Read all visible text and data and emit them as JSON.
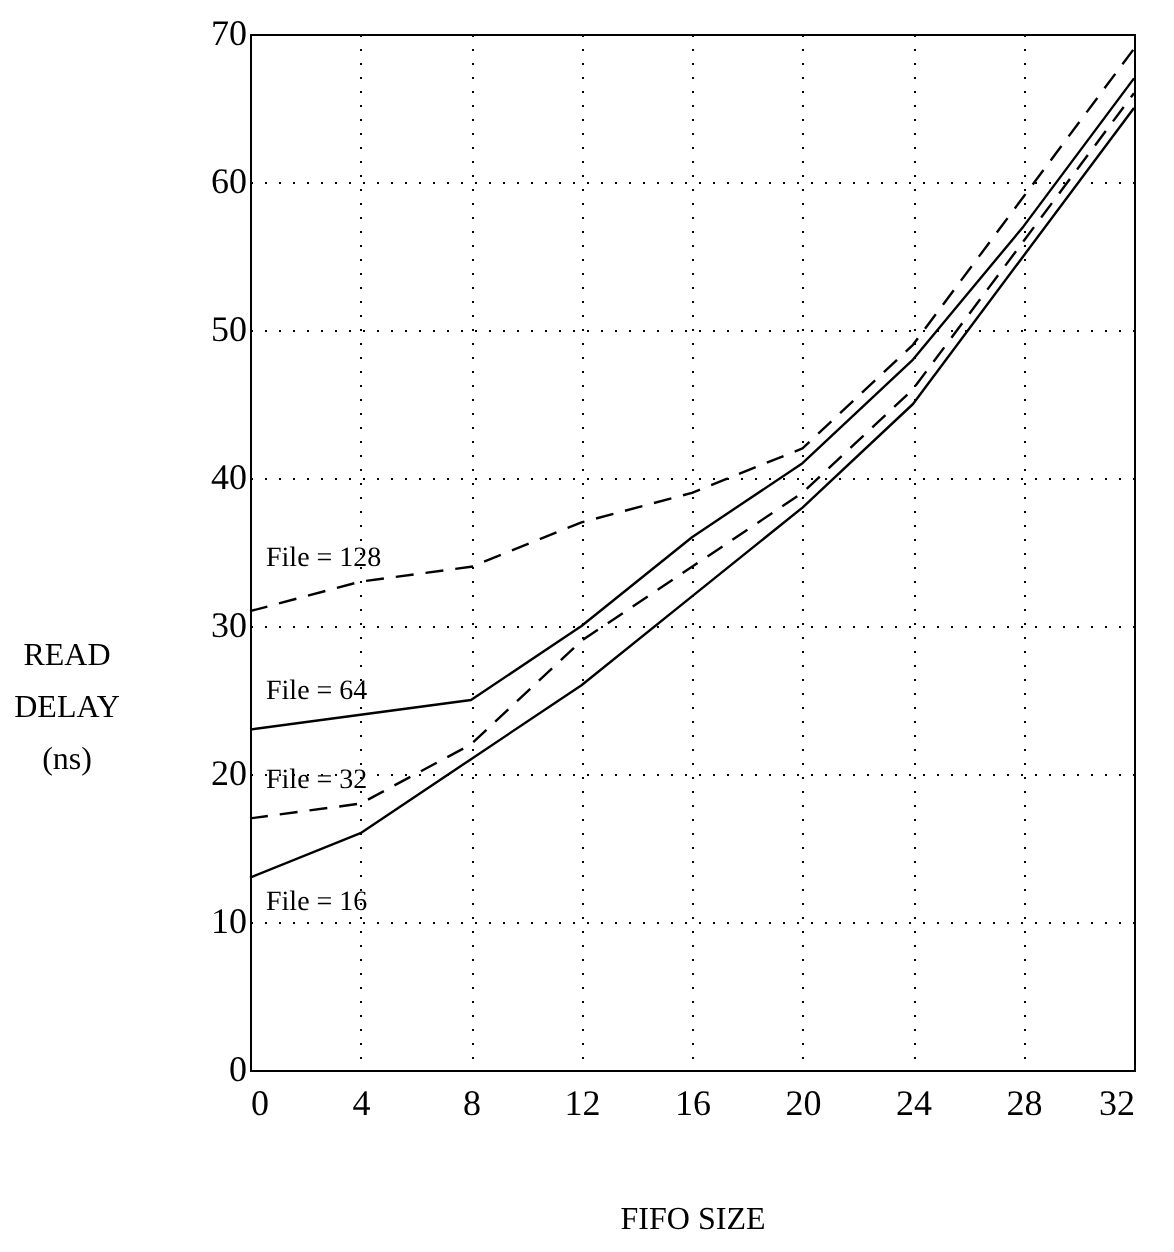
{
  "chart_data": {
    "type": "line",
    "xlabel": "FIFO SIZE",
    "ylabel": "READ DELAY (ns)",
    "x": [
      0,
      4,
      8,
      12,
      16,
      20,
      24,
      28,
      32
    ],
    "series": [
      {
        "name": "File = 128",
        "color": "#000000",
        "line_style": "dashed",
        "values": [
          31,
          33,
          34,
          37,
          39,
          42,
          49,
          59,
          69
        ]
      },
      {
        "name": "File = 64",
        "color": "#000000",
        "line_style": "solid",
        "values": [
          23,
          24,
          25,
          30,
          36,
          41,
          48,
          57,
          67
        ]
      },
      {
        "name": "File = 32",
        "color": "#000000",
        "line_style": "dashed",
        "values": [
          17,
          18,
          22,
          29,
          34,
          39,
          46,
          56,
          66
        ]
      },
      {
        "name": "File = 16",
        "color": "#000000",
        "line_style": "solid",
        "values": [
          13,
          16,
          21,
          26,
          32,
          38,
          45,
          55,
          65
        ]
      }
    ],
    "xlim": [
      0,
      32
    ],
    "xticks": [
      0,
      4,
      8,
      12,
      16,
      20,
      24,
      28,
      32
    ],
    "ylim": [
      0,
      70
    ],
    "yticks": [
      0,
      10,
      20,
      30,
      40,
      50,
      60,
      70
    ],
    "grid": true,
    "legend": false,
    "marker": "none"
  }
}
